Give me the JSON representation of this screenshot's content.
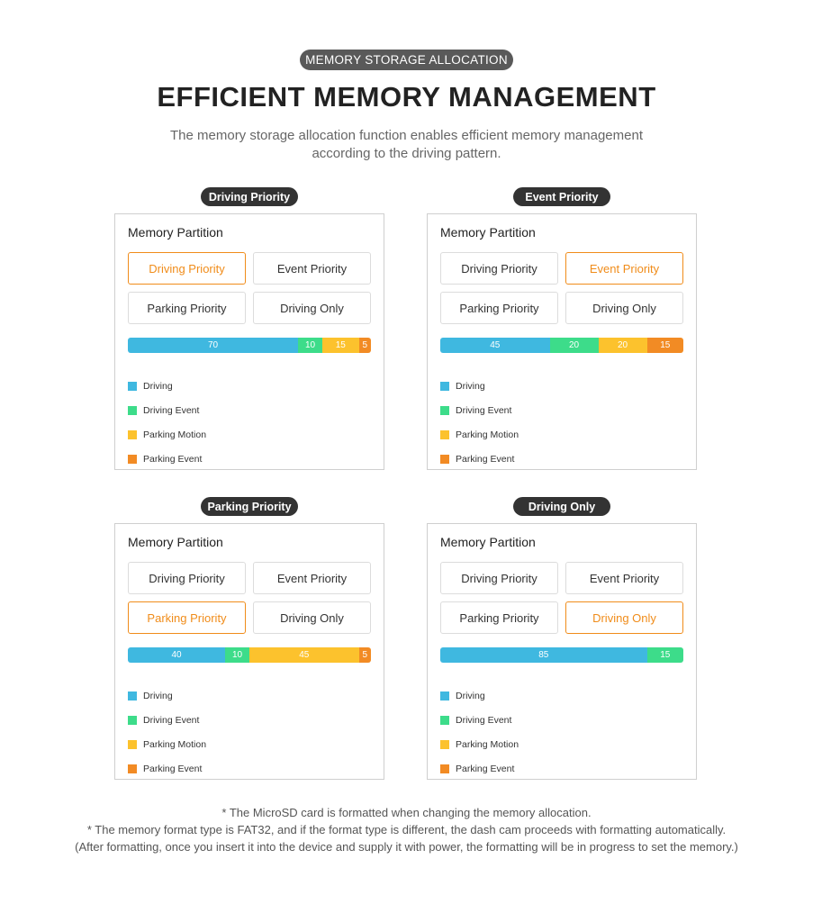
{
  "header": {
    "badge": "MEMORY STORAGE ALLOCATION",
    "title": "EFFICIENT MEMORY MANAGEMENT",
    "subtitle_line1": "The memory storage allocation function enables efficient memory management",
    "subtitle_line2": "according to the driving pattern."
  },
  "colors": {
    "driving": "#3fb8e0",
    "driving_event": "#3ddc8a",
    "parking_motion": "#fcc22d",
    "parking_event": "#f28b24",
    "active_option": "#f08c1a"
  },
  "legend": [
    "Driving",
    "Driving Event",
    "Parking Motion",
    "Parking Event"
  ],
  "options": [
    "Driving Priority",
    "Event Priority",
    "Parking Priority",
    "Driving Only"
  ],
  "card_title": "Memory Partition",
  "cards": [
    {
      "label": "Driving Priority",
      "active": 0,
      "values": [
        70,
        10,
        15,
        5
      ]
    },
    {
      "label": "Event Priority",
      "active": 1,
      "values": [
        45,
        20,
        20,
        15
      ]
    },
    {
      "label": "Parking Priority",
      "active": 2,
      "values": [
        40,
        10,
        45,
        5
      ]
    },
    {
      "label": "Driving Only",
      "active": 3,
      "values": [
        85,
        15,
        0,
        0
      ]
    }
  ],
  "footnotes": {
    "line1": "* The MicroSD card is formatted when changing the memory allocation.",
    "line2": "* The memory format type is FAT32, and if the format type is different, the dash cam proceeds with formatting automatically.",
    "line3": "(After formatting, once you insert it into the device and supply it with power, the formatting will be in progress to set the memory.)"
  }
}
